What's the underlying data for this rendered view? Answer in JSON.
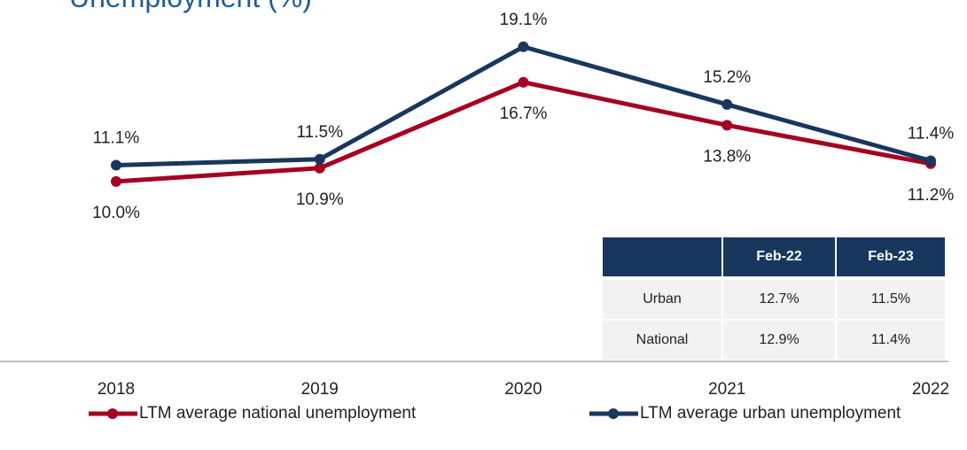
{
  "chart_data": {
    "type": "line",
    "title": "Unemployment (%)",
    "categories": [
      "2018",
      "2019",
      "2020",
      "2021",
      "2022"
    ],
    "series": [
      {
        "name": "LTM average national unemployment",
        "color": "#a50021",
        "values": [
          10.0,
          10.9,
          16.7,
          13.8,
          11.2
        ],
        "value_labels": [
          "10.0%",
          "10.9%",
          "16.7%",
          "13.8%",
          "11.2%"
        ]
      },
      {
        "name": "LTM average urban unemployment",
        "color": "#17375e",
        "values": [
          11.1,
          11.5,
          19.1,
          15.2,
          11.4
        ],
        "value_labels": [
          "11.1%",
          "11.5%",
          "19.1%",
          "15.2%",
          "11.4%"
        ]
      }
    ],
    "ylim": [
      -2,
      21
    ]
  },
  "table": {
    "header": [
      "Feb-22",
      "Feb-23"
    ],
    "rows": [
      [
        "Urban",
        "12.7%",
        "11.5%"
      ],
      [
        "National",
        "12.9%",
        "11.4%"
      ]
    ]
  }
}
